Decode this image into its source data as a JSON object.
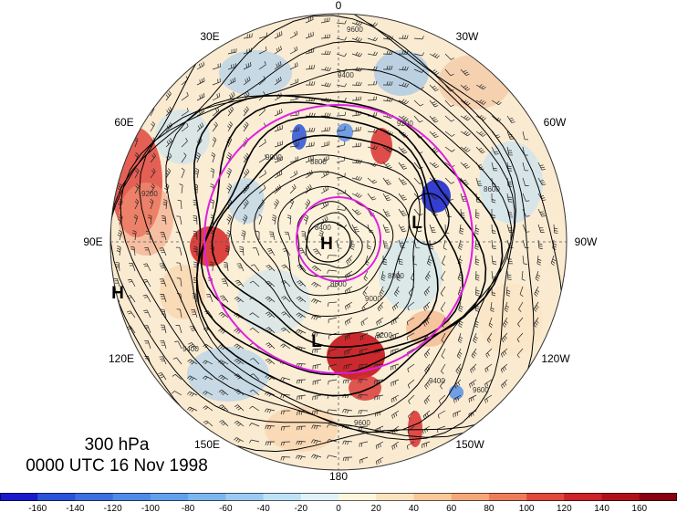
{
  "title": {
    "level": "300 hPa",
    "time": "0000 UTC 16 Nov 1998"
  },
  "longitude_labels": [
    "0",
    "30W",
    "60W",
    "90W",
    "120W",
    "150W",
    "180",
    "150E",
    "120E",
    "90E",
    "60E",
    "30E"
  ],
  "pressure_systems": [
    {
      "type": "H",
      "label": "H"
    },
    {
      "type": "H",
      "label": "H"
    },
    {
      "type": "L",
      "label": "L"
    },
    {
      "type": "L",
      "label": "L"
    }
  ],
  "contour_labels": [
    "9600",
    "9400",
    "9200",
    "9000",
    "8800",
    "8600",
    "8400",
    "9600",
    "9400",
    "9200",
    "9000",
    "8800",
    "8600",
    "9600",
    "9400",
    "9200"
  ],
  "colorbar": {
    "tick_labels": [
      "-160",
      "-140",
      "-120",
      "-100",
      "-80",
      "-60",
      "-40",
      "-20",
      "0",
      "20",
      "40",
      "60",
      "80",
      "100",
      "120",
      "140",
      "160"
    ],
    "colors": [
      "#1a1acc",
      "#2a52d8",
      "#3b6fe0",
      "#4f8ae6",
      "#62a0ec",
      "#7cb6f0",
      "#9ccaf3",
      "#bfe1f6",
      "#dff2fa",
      "#fdf5dc",
      "#fce3bf",
      "#f9c99b",
      "#f4a87a",
      "#ec7c5a",
      "#e0483c",
      "#cc2228",
      "#b0101a",
      "#8a0012"
    ]
  },
  "colors": {
    "circle_magenta": "#e020e0",
    "contour": "#000000"
  }
}
